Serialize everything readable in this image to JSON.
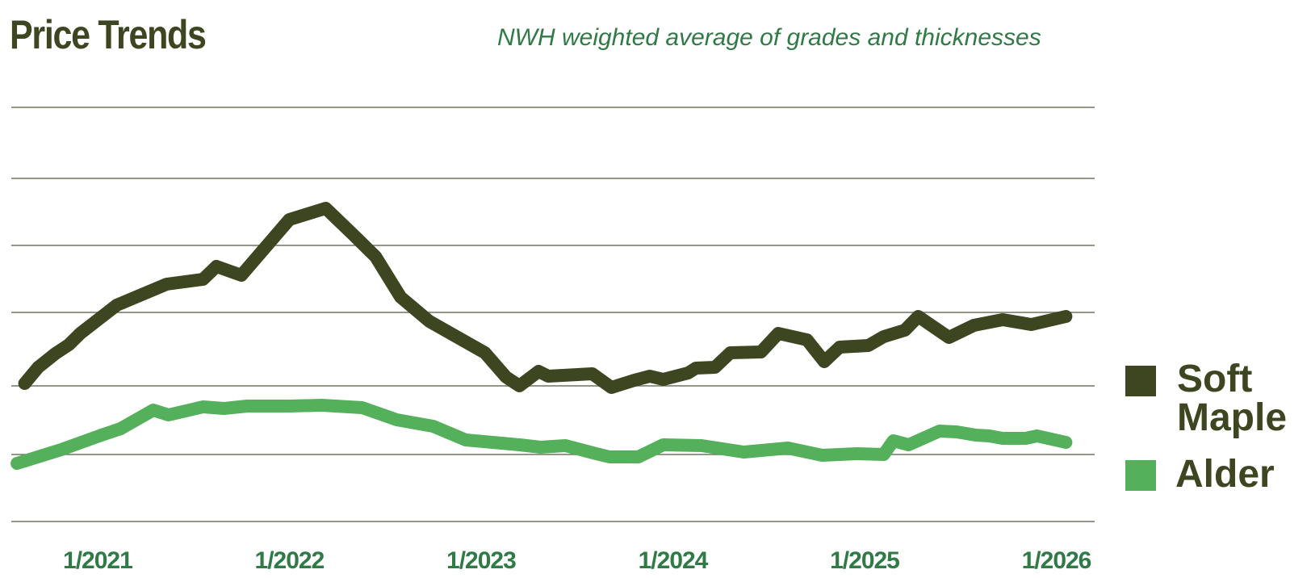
{
  "title": "Price Trends",
  "subtitle": "NWH weighted average of grades and thicknesses",
  "chart_data": {
    "type": "line",
    "title": "Price Trends",
    "subtitle": "NWH weighted average of grades and thicknesses",
    "x_tick_labels": [
      "1/2021",
      "1/2022",
      "1/2023",
      "1/2024",
      "1/2025",
      "1/2026"
    ],
    "x_tick_positions": [
      2021.0,
      2022.0,
      2023.0,
      2024.0,
      2025.0,
      2026.0
    ],
    "xlim": [
      2020.55,
      2026.2
    ],
    "gridlines": 7,
    "y_ticks_labeled": false,
    "legend_placement": "right",
    "colors": {
      "soft_maple": "#3d4621",
      "alder": "#55b05c",
      "grid": "#6f7560",
      "title": "#3d4621",
      "subtitle": "#2f7a45",
      "tick_label": "#2f7a45"
    },
    "series": [
      {
        "name": "Soft Maple",
        "key": "soft_maple",
        "points": [
          [
            2020.62,
            475
          ],
          [
            2020.69,
            455
          ],
          [
            2020.78,
            438
          ],
          [
            2020.85,
            427
          ],
          [
            2020.91,
            413
          ],
          [
            2021.1,
            378
          ],
          [
            2021.36,
            352
          ],
          [
            2021.55,
            346
          ],
          [
            2021.62,
            330
          ],
          [
            2021.75,
            341
          ],
          [
            2022.0,
            272
          ],
          [
            2022.19,
            258
          ],
          [
            2022.33,
            290
          ],
          [
            2022.45,
            318
          ],
          [
            2022.58,
            368
          ],
          [
            2022.73,
            398
          ],
          [
            2023.02,
            437
          ],
          [
            2023.13,
            467
          ],
          [
            2023.2,
            478
          ],
          [
            2023.3,
            460
          ],
          [
            2023.35,
            466
          ],
          [
            2023.58,
            463
          ],
          [
            2023.68,
            480
          ],
          [
            2023.8,
            471
          ],
          [
            2023.88,
            466
          ],
          [
            2023.95,
            470
          ],
          [
            2024.08,
            462
          ],
          [
            2024.12,
            456
          ],
          [
            2024.22,
            455
          ],
          [
            2024.3,
            437
          ],
          [
            2024.46,
            436
          ],
          [
            2024.55,
            413
          ],
          [
            2024.7,
            421
          ],
          [
            2024.79,
            448
          ],
          [
            2024.87,
            430
          ],
          [
            2025.02,
            428
          ],
          [
            2025.1,
            417
          ],
          [
            2025.21,
            409
          ],
          [
            2025.28,
            392
          ],
          [
            2025.44,
            418
          ],
          [
            2025.57,
            403
          ],
          [
            2025.72,
            396
          ],
          [
            2025.87,
            402
          ],
          [
            2026.05,
            392
          ]
        ]
      },
      {
        "name": "Alder",
        "key": "alder",
        "points": [
          [
            2020.58,
            574
          ],
          [
            2020.81,
            557
          ],
          [
            2021.02,
            539
          ],
          [
            2021.12,
            531
          ],
          [
            2021.29,
            508
          ],
          [
            2021.37,
            514
          ],
          [
            2021.55,
            504
          ],
          [
            2021.66,
            506
          ],
          [
            2021.78,
            503
          ],
          [
            2022.0,
            503
          ],
          [
            2022.17,
            502
          ],
          [
            2022.38,
            505
          ],
          [
            2022.56,
            520
          ],
          [
            2022.75,
            528
          ],
          [
            2022.92,
            545
          ],
          [
            2023.2,
            551
          ],
          [
            2023.31,
            554
          ],
          [
            2023.44,
            552
          ],
          [
            2023.6,
            562
          ],
          [
            2023.67,
            566
          ],
          [
            2023.82,
            566
          ],
          [
            2023.95,
            551
          ],
          [
            2024.15,
            552
          ],
          [
            2024.37,
            560
          ],
          [
            2024.6,
            555
          ],
          [
            2024.78,
            564
          ],
          [
            2024.96,
            562
          ],
          [
            2025.1,
            563
          ],
          [
            2025.15,
            546
          ],
          [
            2025.23,
            551
          ],
          [
            2025.39,
            534
          ],
          [
            2025.48,
            535
          ],
          [
            2025.58,
            539
          ],
          [
            2025.65,
            540
          ],
          [
            2025.72,
            543
          ],
          [
            2025.84,
            543
          ],
          [
            2025.9,
            540
          ],
          [
            2026.05,
            548
          ]
        ]
      }
    ]
  },
  "legend": [
    {
      "label": "Soft Maple",
      "key": "soft_maple"
    },
    {
      "label": "Alder",
      "key": "alder"
    }
  ]
}
